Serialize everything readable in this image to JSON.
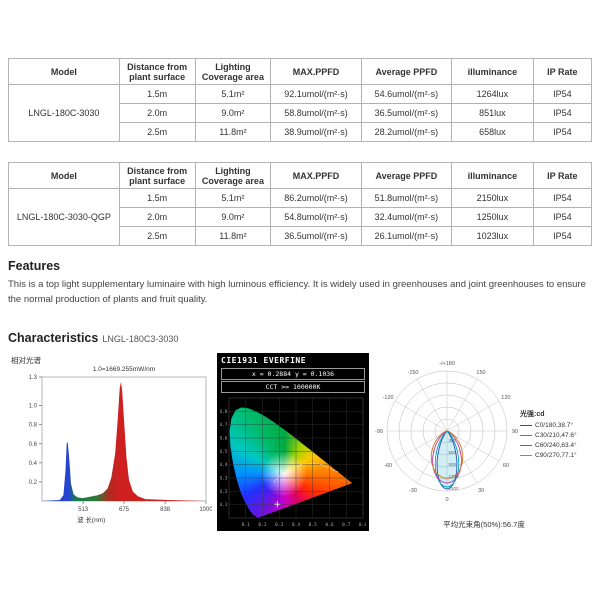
{
  "tables": [
    {
      "headers": [
        "Model",
        "Distance from plant surface",
        "Lighting Coverage area",
        "MAX.PPFD",
        "Average PPFD",
        "illuminance",
        "IP Rate"
      ],
      "model": "LNGL-180C-3030",
      "rows": [
        [
          "1.5m",
          "5.1m²",
          "92.1umol/(m²·s)",
          "54.6umol/(m²·s)",
          "1264lux",
          "IP54"
        ],
        [
          "2.0m",
          "9.0m²",
          "58.8umol/(m²·s)",
          "36.5umol/(m²·s)",
          "851lux",
          "IP54"
        ],
        [
          "2.5m",
          "11.8m²",
          "38.9umol/(m²·s)",
          "28.2umol/(m²·s)",
          "658lux",
          "IP54"
        ]
      ]
    },
    {
      "headers": [
        "Model",
        "Distance from plant surface",
        "Lighting Coverage area",
        "MAX.PPFD",
        "Average PPFD",
        "illuminance",
        "IP Rate"
      ],
      "model": "LNGL-180C-3030-QGP",
      "rows": [
        [
          "1.5m",
          "5.1m²",
          "86.2umol/(m²·s)",
          "51.8umol/(m²·s)",
          "2150lux",
          "IP54"
        ],
        [
          "2.0m",
          "9.0m²",
          "54.8umol/(m²·s)",
          "32.4umol/(m²·s)",
          "1250lux",
          "IP54"
        ],
        [
          "2.5m",
          "11.8m²",
          "36.5umol/(m²·s)",
          "26.1umol/(m²·s)",
          "1023lux",
          "IP54"
        ]
      ]
    }
  ],
  "features": {
    "heading": "Features",
    "text": "This is a top light supplementary luminaire with high luminous efficiency. It is widely used in greenhouses and joint greenhouses to ensure the normal production of plants and fruit quality."
  },
  "characteristics": {
    "heading": "Characteristics",
    "model": "LNGL-180C3-3030"
  },
  "chart_data": [
    {
      "type": "area",
      "title": "相对光谱",
      "scale_label": "1.0=1669.255mW/nm",
      "xlabel": "波 长(nm)",
      "xmin": 350,
      "xmax": 1000,
      "ymax": 1.3,
      "xticks": [
        513,
        675,
        838,
        1000
      ],
      "yticks": [
        0.2,
        0.4,
        0.6,
        0.8,
        1.0,
        1.3
      ],
      "points": [
        [
          350,
          0
        ],
        [
          420,
          0.01
        ],
        [
          435,
          0.06
        ],
        [
          443,
          0.32
        ],
        [
          448,
          0.6
        ],
        [
          452,
          0.62
        ],
        [
          458,
          0.45
        ],
        [
          465,
          0.18
        ],
        [
          475,
          0.07
        ],
        [
          490,
          0.04
        ],
        [
          510,
          0.03
        ],
        [
          530,
          0.04
        ],
        [
          550,
          0.05
        ],
        [
          570,
          0.06
        ],
        [
          590,
          0.08
        ],
        [
          610,
          0.13
        ],
        [
          625,
          0.25
        ],
        [
          640,
          0.5
        ],
        [
          650,
          0.85
        ],
        [
          658,
          1.18
        ],
        [
          663,
          1.25
        ],
        [
          668,
          1.15
        ],
        [
          675,
          0.85
        ],
        [
          685,
          0.45
        ],
        [
          695,
          0.22
        ],
        [
          710,
          0.1
        ],
        [
          730,
          0.05
        ],
        [
          760,
          0.02
        ],
        [
          850,
          0.01
        ],
        [
          1000,
          0
        ]
      ],
      "gradient": [
        [
          0,
          "#2743cf"
        ],
        [
          0.16,
          "#2743cf"
        ],
        [
          0.205,
          "#1a7a50"
        ],
        [
          0.33,
          "#2c7a35"
        ],
        [
          0.41,
          "#b02a20"
        ],
        [
          0.47,
          "#cf2020"
        ],
        [
          1,
          "#cf2020"
        ]
      ]
    },
    {
      "type": "chromaticity",
      "title": "CIE1931 EVERFINE",
      "xy_text": "x = 0.2884 y = 0.1036",
      "cct_text": "CCT >= 100000K",
      "point": [
        0.2884,
        0.1036
      ],
      "white_point": [
        0.33,
        0.33
      ],
      "locus": [
        [
          0.1741,
          0.005
        ],
        [
          0.1666,
          0.0089
        ],
        [
          0.1566,
          0.0177
        ],
        [
          0.144,
          0.0297
        ],
        [
          0.1241,
          0.0578
        ],
        [
          0.0913,
          0.1327
        ],
        [
          0.0687,
          0.2007
        ],
        [
          0.0454,
          0.295
        ],
        [
          0.0235,
          0.4127
        ],
        [
          0.0082,
          0.5384
        ],
        [
          0.0039,
          0.6548
        ],
        [
          0.0139,
          0.7502
        ],
        [
          0.0389,
          0.812
        ],
        [
          0.0743,
          0.8338
        ],
        [
          0.1142,
          0.8262
        ],
        [
          0.1547,
          0.8059
        ],
        [
          0.1929,
          0.7816
        ],
        [
          0.2296,
          0.7543
        ],
        [
          0.2658,
          0.7243
        ],
        [
          0.3016,
          0.6923
        ],
        [
          0.3373,
          0.6589
        ],
        [
          0.3731,
          0.6245
        ],
        [
          0.4087,
          0.5896
        ],
        [
          0.4441,
          0.5547
        ],
        [
          0.4788,
          0.5202
        ],
        [
          0.5125,
          0.4866
        ],
        [
          0.5448,
          0.4544
        ],
        [
          0.5752,
          0.4242
        ],
        [
          0.6029,
          0.3965
        ],
        [
          0.627,
          0.3725
        ],
        [
          0.6482,
          0.3514
        ],
        [
          0.6658,
          0.334
        ],
        [
          0.6801,
          0.3197
        ],
        [
          0.6915,
          0.3083
        ],
        [
          0.7006,
          0.2993
        ],
        [
          0.714,
          0.2859
        ],
        [
          0.726,
          0.274
        ],
        [
          0.7347,
          0.2653
        ]
      ],
      "planckian": [
        [
          0.652,
          0.344
        ],
        [
          0.527,
          0.413
        ],
        [
          0.437,
          0.404
        ],
        [
          0.365,
          0.363
        ],
        [
          0.313,
          0.323
        ],
        [
          0.285,
          0.293
        ],
        [
          0.266,
          0.267
        ]
      ]
    },
    {
      "type": "polar",
      "legend_title": "光强:cd",
      "r_max": 1500,
      "r_ticks": [
        300,
        600,
        900,
        1200,
        1500
      ],
      "angle_labels": [
        {
          "angle": 180,
          "label": "-/+180"
        },
        {
          "angle": -150,
          "label": "-150"
        },
        {
          "angle": 150,
          "label": "150"
        },
        {
          "angle": -120,
          "label": "-120"
        },
        {
          "angle": 120,
          "label": "120"
        },
        {
          "angle": -90,
          "label": "-90"
        },
        {
          "angle": 90,
          "label": "90"
        },
        {
          "angle": -60,
          "label": "-60"
        },
        {
          "angle": 60,
          "label": "60"
        },
        {
          "angle": -30,
          "label": "-30"
        },
        {
          "angle": 30,
          "label": "30"
        },
        {
          "angle": 0,
          "label": "0"
        }
      ],
      "curves": [
        {
          "label": "C0/180,38.7°",
          "beam_angle": 38.7,
          "peak": 1450,
          "color": "#1f4fc0"
        },
        {
          "label": "C30/210,47.6°",
          "beam_angle": 47.6,
          "peak": 1400,
          "color": "#00a2b8"
        },
        {
          "label": "C60/240,63.4°",
          "beam_angle": 63.4,
          "peak": 1300,
          "color": "#b040a0"
        },
        {
          "label": "C90/270,77.1°",
          "beam_angle": 77.1,
          "peak": 1180,
          "color": "#d07820"
        }
      ],
      "beam_angle_text": "平均光束角(50%):56.7度"
    }
  ]
}
